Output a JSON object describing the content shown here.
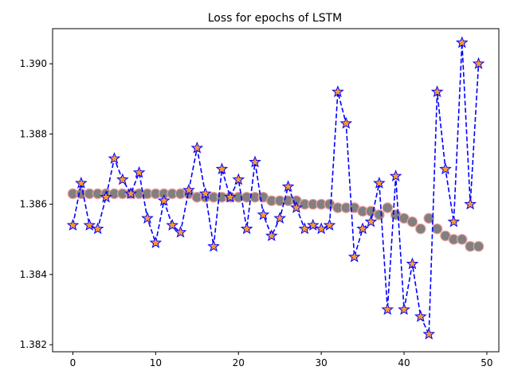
{
  "chart_data": {
    "type": "line",
    "title": "Loss for epochs of LSTM",
    "xlabel": "",
    "ylabel": "",
    "xlim": [
      -2.45,
      51.45
    ],
    "ylim": [
      1.3818,
      1.391
    ],
    "xticks": [
      0,
      10,
      20,
      30,
      40,
      50
    ],
    "yticks": [
      1.382,
      1.384,
      1.386,
      1.388,
      1.39
    ],
    "ytick_labels": [
      "1.382",
      "1.384",
      "1.386",
      "1.388",
      "1.390"
    ],
    "grid": false,
    "legend": "none",
    "x": [
      0,
      1,
      2,
      3,
      4,
      5,
      6,
      7,
      8,
      9,
      10,
      11,
      12,
      13,
      14,
      15,
      16,
      17,
      18,
      19,
      20,
      21,
      22,
      23,
      24,
      25,
      26,
      27,
      28,
      29,
      30,
      31,
      32,
      33,
      34,
      35,
      36,
      37,
      38,
      39,
      40,
      41,
      42,
      43,
      44,
      45,
      46,
      47,
      48,
      49
    ],
    "series": [
      {
        "style": "dashed line with star markers",
        "line_color": "#0000ff",
        "marker_face": "#ff9933",
        "marker_edge": "#0000ff",
        "values": [
          1.3854,
          1.3866,
          1.3854,
          1.3853,
          1.3862,
          1.3873,
          1.3867,
          1.3863,
          1.3869,
          1.3856,
          1.3849,
          1.3861,
          1.3854,
          1.3852,
          1.3864,
          1.3876,
          1.3863,
          1.3848,
          1.387,
          1.3862,
          1.3867,
          1.3853,
          1.3872,
          1.3857,
          1.3851,
          1.3856,
          1.3865,
          1.3859,
          1.3853,
          1.3854,
          1.3853,
          1.3854,
          1.3892,
          1.3883,
          1.3845,
          1.3853,
          1.3855,
          1.3866,
          1.383,
          1.3868,
          1.383,
          1.3843,
          1.3828,
          1.3823,
          1.3892,
          1.387,
          1.3855,
          1.3906,
          1.386,
          1.39
        ]
      },
      {
        "style": "circle markers",
        "marker_face": "#808080",
        "marker_edge": "#f4a0a0",
        "values": [
          1.3863,
          1.3863,
          1.3863,
          1.3863,
          1.3863,
          1.3863,
          1.3863,
          1.3863,
          1.3863,
          1.3863,
          1.3863,
          1.3863,
          1.3863,
          1.3863,
          1.3863,
          1.3862,
          1.3862,
          1.3862,
          1.3862,
          1.3862,
          1.3862,
          1.3862,
          1.3862,
          1.3862,
          1.3861,
          1.3861,
          1.3861,
          1.3861,
          1.386,
          1.386,
          1.386,
          1.386,
          1.3859,
          1.3859,
          1.3859,
          1.3858,
          1.3858,
          1.3857,
          1.3859,
          1.3857,
          1.3856,
          1.3855,
          1.3853,
          1.3856,
          1.3853,
          1.3851,
          1.385,
          1.385,
          1.3848,
          1.3848
        ]
      }
    ]
  }
}
